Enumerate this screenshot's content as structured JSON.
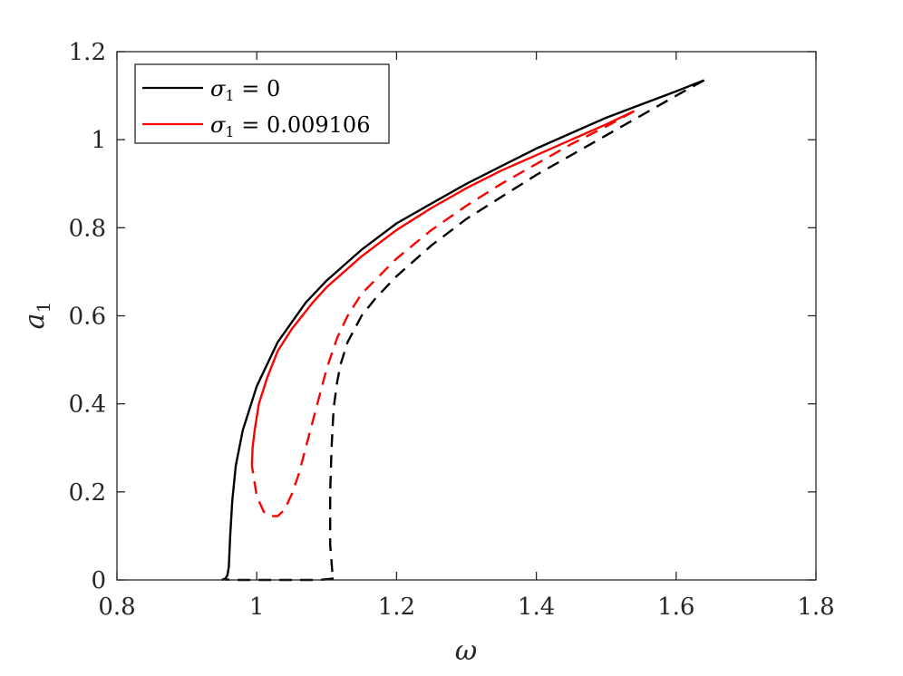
{
  "chart_data": {
    "type": "line",
    "title": "",
    "xlabel": "ω",
    "ylabel": "a",
    "ylabel_sub": "1",
    "xlim": [
      0.8,
      1.8
    ],
    "ylim": [
      0,
      1.2
    ],
    "xticks": [
      "0.8",
      "1",
      "1.2",
      "1.4",
      "1.6",
      "1.8"
    ],
    "xtick_values": [
      0.8,
      1.0,
      1.2,
      1.4,
      1.6,
      1.8
    ],
    "yticks": [
      "0",
      "0.2",
      "0.4",
      "0.6",
      "0.8",
      "1",
      "1.2"
    ],
    "ytick_values": [
      0,
      0.2,
      0.4,
      0.6,
      0.8,
      1.0,
      1.2
    ],
    "grid": false,
    "legend_position": "top-left",
    "legend": [
      {
        "symbol": "σ",
        "sub": "1",
        "rest": " = 0",
        "color": "#000000"
      },
      {
        "symbol": "σ",
        "sub": "1",
        "rest": " = 0.009106",
        "color": "#ff0000"
      }
    ],
    "series": [
      {
        "legend_index": 0,
        "color": "#000000",
        "style": "solid",
        "x": [
          0.95,
          0.955,
          0.958,
          0.96,
          0.962,
          0.965,
          0.97,
          0.98,
          1.0,
          1.03,
          1.07,
          1.1,
          1.15,
          1.2,
          1.25,
          1.3,
          1.35,
          1.4,
          1.45,
          1.5,
          1.55,
          1.6,
          1.64
        ],
        "y": [
          0.0,
          0.003,
          0.01,
          0.03,
          0.1,
          0.18,
          0.26,
          0.34,
          0.44,
          0.54,
          0.63,
          0.68,
          0.75,
          0.81,
          0.855,
          0.9,
          0.94,
          0.98,
          1.015,
          1.05,
          1.08,
          1.11,
          1.135
        ]
      },
      {
        "legend_index": 0,
        "color": "#000000",
        "style": "dashed",
        "x": [
          1.64,
          1.6,
          1.55,
          1.5,
          1.45,
          1.4,
          1.35,
          1.3,
          1.25,
          1.2,
          1.17,
          1.15,
          1.13,
          1.12,
          1.115,
          1.11,
          1.107,
          1.105,
          1.105,
          1.108,
          1.11
        ],
        "y": [
          1.135,
          1.1,
          1.055,
          1.01,
          0.965,
          0.92,
          0.87,
          0.82,
          0.76,
          0.69,
          0.64,
          0.6,
          0.54,
          0.49,
          0.45,
          0.39,
          0.3,
          0.2,
          0.08,
          0.02,
          0.003
        ]
      },
      {
        "legend_index": 0,
        "color": "#000000",
        "style": "dashed",
        "x": [
          1.11,
          1.09,
          1.05,
          1.0,
          0.97,
          0.955
        ],
        "y": [
          0.003,
          0.0,
          0.0,
          0.0,
          0.0,
          0.001
        ]
      },
      {
        "legend_index": 1,
        "color": "#ff0000",
        "style": "solid",
        "x": [
          0.993,
          0.994,
          0.997,
          1.003,
          1.015,
          1.03,
          1.05,
          1.08,
          1.1,
          1.15,
          1.2,
          1.25,
          1.3,
          1.35,
          1.4,
          1.45,
          1.5,
          1.54
        ],
        "y": [
          0.26,
          0.3,
          0.34,
          0.4,
          0.46,
          0.52,
          0.57,
          0.63,
          0.665,
          0.735,
          0.795,
          0.845,
          0.89,
          0.93,
          0.965,
          1.0,
          1.035,
          1.065
        ]
      },
      {
        "legend_index": 1,
        "color": "#ff0000",
        "style": "dashed",
        "x": [
          1.54,
          1.5,
          1.45,
          1.4,
          1.35,
          1.3,
          1.25,
          1.2,
          1.15,
          1.13,
          1.115,
          1.1,
          1.09,
          1.08,
          1.07,
          1.06,
          1.05,
          1.04,
          1.03,
          1.02,
          1.01,
          1.0,
          0.993
        ],
        "y": [
          1.065,
          1.03,
          0.99,
          0.945,
          0.9,
          0.85,
          0.795,
          0.73,
          0.65,
          0.6,
          0.55,
          0.48,
          0.42,
          0.36,
          0.3,
          0.24,
          0.195,
          0.16,
          0.145,
          0.145,
          0.155,
          0.19,
          0.26
        ]
      }
    ]
  }
}
